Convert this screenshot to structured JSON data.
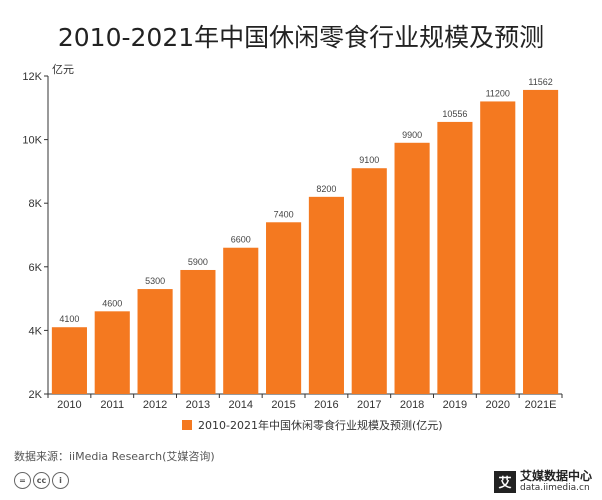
{
  "title": "2010-2021年中国休闲零食行业规模及预测",
  "unit_label": "亿元",
  "source": "数据来源：iiMedia Research(艾媒咨询)",
  "brand": {
    "logo_char": "艾",
    "name": "艾媒数据中心",
    "url": "data.iimedia.cn"
  },
  "license_icons": [
    {
      "name": "cc-equal-icon",
      "glyph": "="
    },
    {
      "name": "cc-icon",
      "glyph": "cc"
    },
    {
      "name": "cc-person-icon",
      "glyph": "i"
    }
  ],
  "chart_data": {
    "type": "bar",
    "title": "2010-2021年中国休闲零食行业规模及预测",
    "xlabel": "",
    "ylabel": "亿元",
    "categories": [
      "2010",
      "2011",
      "2012",
      "2013",
      "2014",
      "2015",
      "2016",
      "2017",
      "2018",
      "2019",
      "2020",
      "2021E"
    ],
    "series": [
      {
        "name": "2010-2021年中国休闲零食行业规模及预测(亿元)",
        "values": [
          4100,
          4600,
          5300,
          5900,
          6600,
          7400,
          8200,
          9100,
          9900,
          10556,
          11200,
          11562
        ],
        "color": "#f47920"
      }
    ],
    "ylim": [
      2000,
      12000
    ],
    "yticks": [
      2000,
      4000,
      6000,
      8000,
      10000,
      12000
    ],
    "ytick_labels": [
      "2K",
      "4K",
      "6K",
      "8K",
      "10K",
      "12K"
    ],
    "data_labels": [
      "4100",
      "4600",
      "5300",
      "5900",
      "6600",
      "7400",
      "8200",
      "9100",
      "9900",
      "10556",
      "11200",
      "11562"
    ],
    "grid": false,
    "legend_position": "bottom"
  }
}
